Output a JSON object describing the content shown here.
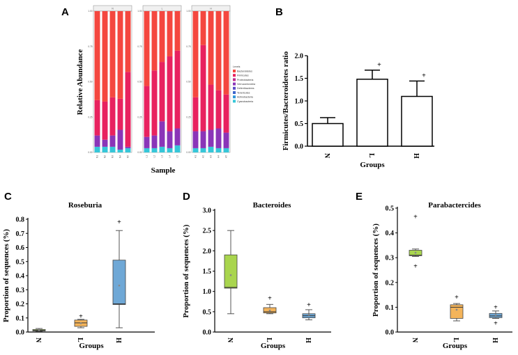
{
  "panels": {
    "A": "A",
    "B": "B",
    "C": "C",
    "D": "D",
    "E": "E"
  },
  "chart_data": [
    {
      "panel": "A",
      "type": "bar",
      "stacked": true,
      "ylabel": "Relative Abundance",
      "xlabel": "Sample",
      "ylim": [
        0,
        1
      ],
      "yticks": [
        "0.00",
        "0.25",
        "0.50",
        "0.75",
        "1.00"
      ],
      "groups": [
        {
          "name": "N",
          "samples": [
            "N1",
            "N2",
            "N3",
            "N4",
            "N5"
          ],
          "bacteroidetes": [
            0.63,
            0.64,
            0.61,
            0.62,
            0.43
          ],
          "firmicutes": [
            0.25,
            0.27,
            0.27,
            0.22,
            0.53
          ],
          "proteobacteria": [
            0.08,
            0.05,
            0.08,
            0.14,
            0.01
          ],
          "other": [
            0.04,
            0.04,
            0.04,
            0.02,
            0.03
          ]
        },
        {
          "name": "L",
          "samples": [
            "L1",
            "L2",
            "L3",
            "L4",
            "L5"
          ],
          "bacteroidetes": [
            0.53,
            0.42,
            0.36,
            0.32,
            0.28
          ],
          "firmicutes": [
            0.36,
            0.46,
            0.42,
            0.53,
            0.55
          ],
          "proteobacteria": [
            0.08,
            0.09,
            0.18,
            0.12,
            0.12
          ],
          "other": [
            0.03,
            0.03,
            0.04,
            0.03,
            0.05
          ]
        },
        {
          "name": "H",
          "samples": [
            "H1",
            "H2",
            "H3",
            "H4",
            "H5"
          ],
          "bacteroidetes": [
            0.61,
            0.24,
            0.52,
            0.56,
            0.59
          ],
          "firmicutes": [
            0.24,
            0.61,
            0.32,
            0.27,
            0.27
          ],
          "proteobacteria": [
            0.12,
            0.12,
            0.12,
            0.14,
            0.11
          ],
          "other": [
            0.03,
            0.03,
            0.04,
            0.03,
            0.03
          ]
        }
      ],
      "legend_title": "Levels",
      "legend": [
        "Bacteroidetes",
        "Firmicutes",
        "Proteobacteria",
        "Verrucomicrobia",
        "Deferribacteres",
        "Tenericutes",
        "Actinobacteria",
        "Cyanobacteria"
      ],
      "legend_colors": [
        "#f4473f",
        "#e8225f",
        "#bf2a8f",
        "#8a35b8",
        "#5b4bc8",
        "#3d66cc",
        "#2f97d8",
        "#36c6d8"
      ]
    },
    {
      "panel": "B",
      "type": "bar",
      "categories": [
        "N",
        "L",
        "H"
      ],
      "values": [
        0.5,
        1.48,
        1.1
      ],
      "errors": [
        0.13,
        0.2,
        0.34
      ],
      "markers": [
        "",
        "+",
        "+"
      ],
      "ylabel": "Firmicutes/Bacteroidetes ratio",
      "xlabel": "Groups",
      "ylim": [
        0,
        2.0
      ],
      "yticks": [
        "0.0",
        "0.5",
        "1.0",
        "1.5",
        "2.0"
      ]
    },
    {
      "panel": "C",
      "type": "box",
      "title": "Roseburia",
      "ylabel": "Proportion of sequences (%)",
      "xlabel": "Groups",
      "ylim": [
        0,
        0.8
      ],
      "yticks": [
        "0.0",
        "0.1",
        "0.2",
        "0.3",
        "0.4",
        "0.5",
        "0.6",
        "0.7",
        "0.8"
      ],
      "categories": [
        "N",
        "L",
        "H"
      ],
      "colors": [
        "#a9d54e",
        "#f4b45a",
        "#6fa8d6"
      ],
      "boxes": [
        {
          "min": 0.005,
          "q1": 0.008,
          "median": 0.012,
          "q3": 0.018,
          "max": 0.025,
          "mean": 0.013,
          "outliers": []
        },
        {
          "min": 0.03,
          "q1": 0.04,
          "median": 0.065,
          "q3": 0.085,
          "max": 0.09,
          "mean": 0.062,
          "outliers": [
            0.11
          ]
        },
        {
          "min": 0.03,
          "q1": 0.195,
          "median": 0.2,
          "q3": 0.51,
          "max": 0.72,
          "mean": 0.33,
          "outliers": [
            0.78
          ]
        }
      ]
    },
    {
      "panel": "D",
      "type": "box",
      "title": "Bacteroides",
      "ylabel": "Proportion of sequences (%)",
      "xlabel": "Groups",
      "ylim": [
        0,
        3.0
      ],
      "yticks": [
        "0.0",
        "0.5",
        "1.0",
        "1.5",
        "2.0",
        "2.5",
        "3.0"
      ],
      "categories": [
        "N",
        "L",
        "H"
      ],
      "colors": [
        "#a9d54e",
        "#f4b45a",
        "#6fa8d6"
      ],
      "boxes": [
        {
          "min": 0.45,
          "q1": 1.08,
          "median": 1.1,
          "q3": 1.9,
          "max": 2.5,
          "mean": 1.4,
          "outliers": []
        },
        {
          "min": 0.45,
          "q1": 0.47,
          "median": 0.5,
          "q3": 0.6,
          "max": 0.68,
          "mean": 0.53,
          "outliers": [
            0.83
          ]
        },
        {
          "min": 0.3,
          "q1": 0.35,
          "median": 0.4,
          "q3": 0.45,
          "max": 0.55,
          "mean": 0.42,
          "outliers": [
            0.67
          ]
        }
      ]
    },
    {
      "panel": "E",
      "type": "box",
      "title": "Parabactercides",
      "ylabel": "Proportion of sequences (%)",
      "xlabel": "Groups",
      "ylim": [
        0,
        0.5
      ],
      "yticks": [
        "0.0",
        "0.1",
        "0.2",
        "0.3",
        "0.4",
        "0.5"
      ],
      "categories": [
        "N",
        "L",
        "H"
      ],
      "colors": [
        "#a9d54e",
        "#f4b45a",
        "#6fa8d6"
      ],
      "boxes": [
        {
          "min": 0.305,
          "q1": 0.308,
          "median": 0.31,
          "q3": 0.33,
          "max": 0.335,
          "mean": 0.32,
          "outliers": [
            0.465,
            0.265
          ]
        },
        {
          "min": 0.045,
          "q1": 0.055,
          "median": 0.1,
          "q3": 0.11,
          "max": 0.115,
          "mean": 0.09,
          "outliers": [
            0.14
          ]
        },
        {
          "min": 0.055,
          "q1": 0.058,
          "median": 0.065,
          "q3": 0.075,
          "max": 0.085,
          "mean": 0.068,
          "outliers": [
            0.1,
            0.035
          ]
        }
      ]
    }
  ]
}
